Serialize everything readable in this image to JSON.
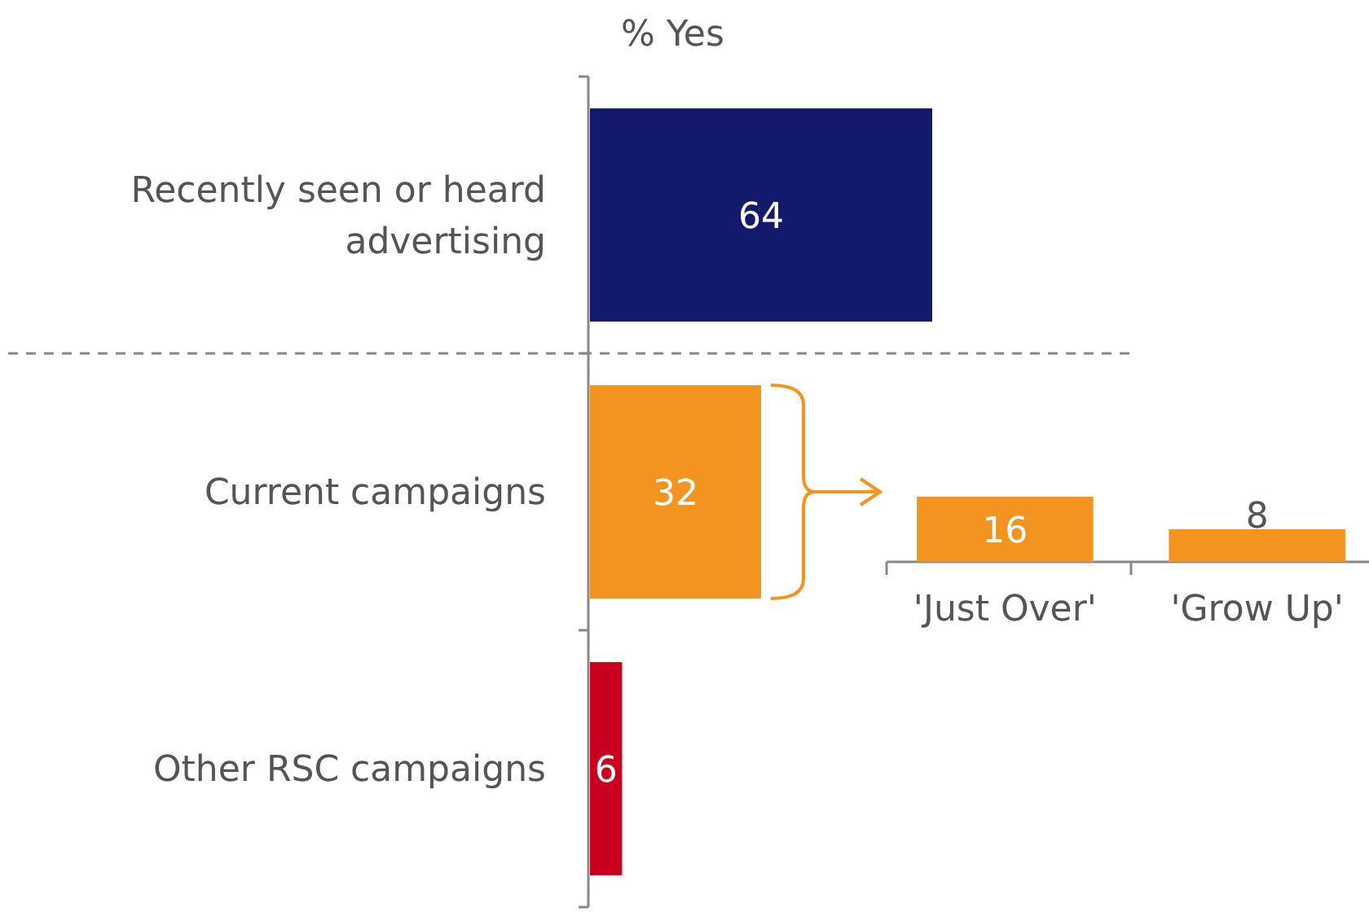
{
  "chart_data": [
    {
      "type": "bar",
      "orientation": "horizontal",
      "title": "% Yes",
      "categories": [
        "Recently seen or heard advertising",
        "Current campaigns",
        "Other RSC campaigns"
      ],
      "values": [
        64,
        32,
        6
      ],
      "colors": [
        "#141a6b",
        "#f39320",
        "#c8001e"
      ],
      "data_labels": true
    },
    {
      "type": "bar",
      "categories": [
        "'Just Over'",
        "'Grow Up'"
      ],
      "values": [
        16,
        8
      ],
      "colors": [
        "#f39320",
        "#f39320"
      ],
      "data_labels": true
    }
  ]
}
